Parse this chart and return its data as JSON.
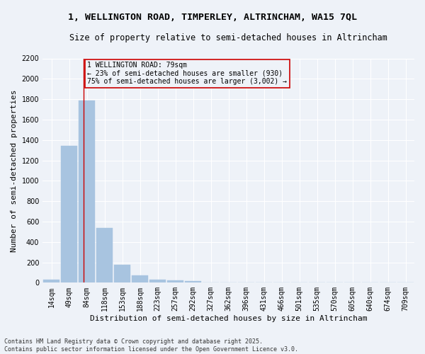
{
  "title_line1": "1, WELLINGTON ROAD, TIMPERLEY, ALTRINCHAM, WA15 7QL",
  "title_line2": "Size of property relative to semi-detached houses in Altrincham",
  "xlabel": "Distribution of semi-detached houses by size in Altrincham",
  "ylabel": "Number of semi-detached properties",
  "categories": [
    "14sqm",
    "49sqm",
    "84sqm",
    "118sqm",
    "153sqm",
    "188sqm",
    "223sqm",
    "257sqm",
    "292sqm",
    "327sqm",
    "362sqm",
    "396sqm",
    "431sqm",
    "466sqm",
    "501sqm",
    "535sqm",
    "570sqm",
    "605sqm",
    "640sqm",
    "674sqm",
    "709sqm"
  ],
  "values": [
    28,
    1340,
    1790,
    540,
    175,
    75,
    28,
    22,
    14,
    0,
    0,
    0,
    0,
    0,
    0,
    0,
    0,
    0,
    0,
    0,
    0
  ],
  "bar_color": "#a8c4e0",
  "bar_edge_color": "#a8c4e0",
  "vline_color": "#cc0000",
  "vline_pos": 1.82,
  "annotation_text": "1 WELLINGTON ROAD: 79sqm\n← 23% of semi-detached houses are smaller (930)\n75% of semi-detached houses are larger (3,002) →",
  "annotation_box_color": "#cc0000",
  "annotation_bg_color": "#eef2f8",
  "ylim": [
    0,
    2200
  ],
  "yticks": [
    0,
    200,
    400,
    600,
    800,
    1000,
    1200,
    1400,
    1600,
    1800,
    2000,
    2200
  ],
  "background_color": "#eef2f8",
  "grid_color": "#ffffff",
  "footer_text": "Contains HM Land Registry data © Crown copyright and database right 2025.\nContains public sector information licensed under the Open Government Licence v3.0.",
  "title_fontsize": 9.5,
  "subtitle_fontsize": 8.5,
  "axis_label_fontsize": 8,
  "tick_fontsize": 7,
  "annotation_fontsize": 7,
  "footer_fontsize": 6
}
